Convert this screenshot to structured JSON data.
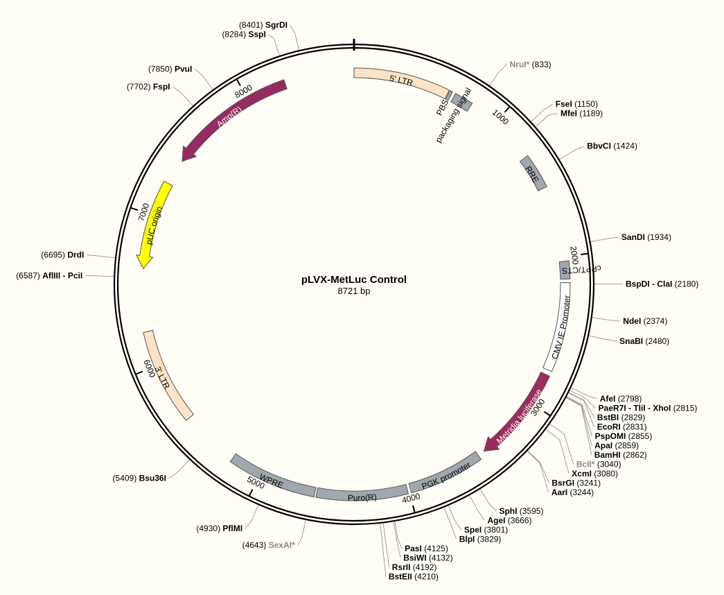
{
  "plasmid": {
    "name": "pLVX-MetLuc Control",
    "length_label": "8721 bp",
    "length": 8721
  },
  "colors": {
    "background": "#fffdf5",
    "ltr": "#fde3c6",
    "grey_feature": "#a1a7ae",
    "white_feature": "#ffffff",
    "luciferase": "#9e2a5e",
    "amp": "#962b62",
    "puc_origin": "#ffff00"
  },
  "ticks": [
    {
      "pos": 1000,
      "label": "1000"
    },
    {
      "pos": 2000,
      "label": "2000"
    },
    {
      "pos": 3000,
      "label": "3000"
    },
    {
      "pos": 4000,
      "label": "4000"
    },
    {
      "pos": 5000,
      "label": "5000"
    },
    {
      "pos": 6000,
      "label": "6000"
    },
    {
      "pos": 7000,
      "label": "7000"
    },
    {
      "pos": 8000,
      "label": "8000"
    }
  ],
  "features": [
    {
      "id": "5-ltr",
      "label": "5' LTR",
      "start": 1,
      "end": 634,
      "strand": 1,
      "color": "#fde3c6",
      "text_color": "#000",
      "label_mode": "inside"
    },
    {
      "id": "pbs",
      "label": "PBS",
      "start": 640,
      "end": 658,
      "strand": 1,
      "color": "#a1a7ae",
      "text_color": "#000",
      "label_mode": "inside-offset"
    },
    {
      "id": "packaging-signal",
      "label": "packaging signal",
      "start": 680,
      "end": 805,
      "strand": 1,
      "color": "#a1a7ae",
      "text_color": "#000",
      "label_mode": "outside"
    },
    {
      "id": "rre",
      "label": "RRE",
      "start": 1297,
      "end": 1530,
      "strand": 1,
      "color": "#a1a7ae",
      "text_color": "#000",
      "label_mode": "inside"
    },
    {
      "id": "cppt-cts",
      "label": "cPPT/CTS",
      "start": 2030,
      "end": 2147,
      "strand": 1,
      "color": "#a1a7ae",
      "text_color": "#000",
      "label_mode": "outside"
    },
    {
      "id": "cmv-promoter",
      "label": "CMV IE Promoter",
      "start": 2170,
      "end": 2758,
      "strand": 1,
      "color": "#ffffff",
      "text_color": "#000",
      "label_mode": "inside"
    },
    {
      "id": "metridia-luciferase",
      "label": "Metridia luciferase",
      "start": 2790,
      "end": 3443,
      "strand": 1,
      "color": "#9e2a5e",
      "text_color": "#ffffff",
      "label_mode": "inside"
    },
    {
      "id": "pgk-promoter",
      "label": "PGK promoter",
      "start": 3489,
      "end": 3988,
      "strand": 1,
      "color": "#a1a7ae",
      "text_color": "#000",
      "label_mode": "inside"
    },
    {
      "id": "puro-r",
      "label": "Puro(R)",
      "start": 4009,
      "end": 4608,
      "strand": 1,
      "color": "#a1a7ae",
      "text_color": "#000",
      "label_mode": "inside"
    },
    {
      "id": "wpre",
      "label": "WPRE",
      "start": 4620,
      "end": 5208,
      "strand": 1,
      "color": "#a1a7ae",
      "text_color": "#000",
      "label_mode": "inside"
    },
    {
      "id": "3-ltr",
      "label": "3' LTR",
      "start": 5597,
      "end": 6230,
      "strand": 1,
      "color": "#fde3c6",
      "text_color": "#000",
      "label_mode": "inside"
    },
    {
      "id": "puc-origin",
      "label": "pUC origin",
      "start": 6644,
      "end": 7232,
      "strand": -1,
      "color": "#ffff00",
      "text_color": "#000",
      "label_mode": "inside"
    },
    {
      "id": "amp-r",
      "label": "Amp(R)",
      "start": 7403,
      "end": 8263,
      "strand": -1,
      "color": "#962b62",
      "text_color": "#ffffff",
      "label_mode": "inside"
    }
  ],
  "sites": [
    {
      "name": "SgrDI",
      "pos_label": "(8401)",
      "pos": 8401,
      "grey": false
    },
    {
      "name": "SspI",
      "pos_label": "(8284)",
      "pos": 8284,
      "grey": false
    },
    {
      "name": "PvuI",
      "pos_label": "(7850)",
      "pos": 7850,
      "grey": false
    },
    {
      "name": "FspI",
      "pos_label": "(7702)",
      "pos": 7702,
      "grey": false
    },
    {
      "name": "DrdI",
      "pos_label": "(6695)",
      "pos": 6695,
      "grey": false
    },
    {
      "name": "AflIII - PciI",
      "pos_label": "(6587)",
      "pos": 6587,
      "grey": false
    },
    {
      "name": "Bsu36I",
      "pos_label": "(5409)",
      "pos": 5409,
      "grey": false
    },
    {
      "name": "PflMI",
      "pos_label": "(4930)",
      "pos": 4930,
      "grey": false
    },
    {
      "name": "SexAI*",
      "pos_label": "(4643)",
      "pos": 4643,
      "grey": true
    },
    {
      "name": "BstEII",
      "pos_label": "(4210)",
      "pos": 4210,
      "grey": false
    },
    {
      "name": "RsrII",
      "pos_label": "(4192)",
      "pos": 4192,
      "grey": false
    },
    {
      "name": "BsiWI",
      "pos_label": "(4132)",
      "pos": 4132,
      "grey": false
    },
    {
      "name": "PasI",
      "pos_label": "(4125)",
      "pos": 4125,
      "grey": false
    },
    {
      "name": "BlpI",
      "pos_label": "(3829)",
      "pos": 3829,
      "grey": false
    },
    {
      "name": "SpeI",
      "pos_label": "(3801)",
      "pos": 3801,
      "grey": false
    },
    {
      "name": "AgeI",
      "pos_label": "(3666)",
      "pos": 3666,
      "grey": false
    },
    {
      "name": "SphI",
      "pos_label": "(3595)",
      "pos": 3595,
      "grey": false
    },
    {
      "name": "AarI",
      "pos_label": "(3244)",
      "pos": 3244,
      "grey": false
    },
    {
      "name": "BsrGI",
      "pos_label": "(3241)",
      "pos": 3241,
      "grey": false
    },
    {
      "name": "XcmI",
      "pos_label": "(3080)",
      "pos": 3080,
      "grey": false
    },
    {
      "name": "BclI*",
      "pos_label": "(3040)",
      "pos": 3040,
      "grey": true
    },
    {
      "name": "BamHI",
      "pos_label": "(2862)",
      "pos": 2862,
      "grey": false
    },
    {
      "name": "ApaI",
      "pos_label": "(2859)",
      "pos": 2859,
      "grey": false
    },
    {
      "name": "PspOMI",
      "pos_label": "(2855)",
      "pos": 2855,
      "grey": false
    },
    {
      "name": "EcoRI",
      "pos_label": "(2831)",
      "pos": 2831,
      "grey": false
    },
    {
      "name": "BstBI",
      "pos_label": "(2829)",
      "pos": 2829,
      "grey": false
    },
    {
      "name": "PaeR7I - TliI - XhoI",
      "pos_label": "(2815)",
      "pos": 2815,
      "grey": false
    },
    {
      "name": "AfeI",
      "pos_label": "(2798)",
      "pos": 2798,
      "grey": false
    },
    {
      "name": "NruI*",
      "pos_label": "(833)",
      "pos": 833,
      "grey": true
    },
    {
      "name": "FseI",
      "pos_label": "(1150)",
      "pos": 1150,
      "grey": false
    },
    {
      "name": "MfeI",
      "pos_label": "(1189)",
      "pos": 1189,
      "grey": false
    },
    {
      "name": "BbvCI",
      "pos_label": "(1424)",
      "pos": 1424,
      "grey": false
    },
    {
      "name": "SanDI",
      "pos_label": "(1934)",
      "pos": 1934,
      "grey": false
    },
    {
      "name": "BspDI - ClaI",
      "pos_label": "(2180)",
      "pos": 2180,
      "grey": false
    },
    {
      "name": "NdeI",
      "pos_label": "(2374)",
      "pos": 2374,
      "grey": false
    },
    {
      "name": "SnaBI",
      "pos_label": "(2480)",
      "pos": 2480,
      "grey": false
    }
  ]
}
